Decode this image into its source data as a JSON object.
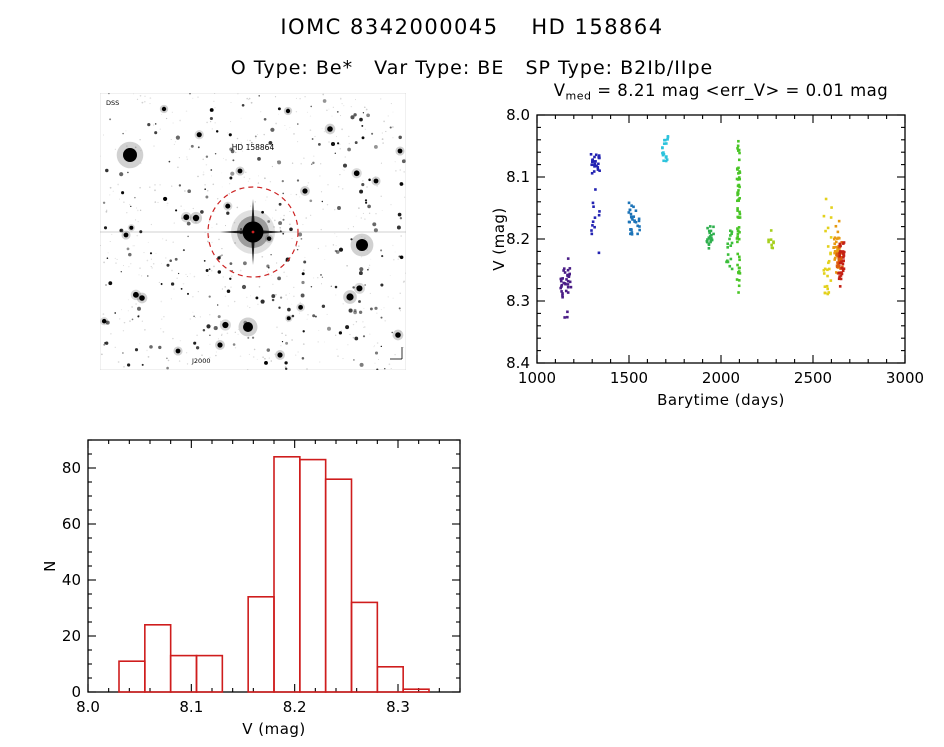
{
  "page": {
    "title": "IOMC 8342000045    HD 158864",
    "subtitle": "O Type: Be*   Var Type: BE   SP Type: B2Ib/IIpe"
  },
  "finder": {
    "target_label": "HD 158864",
    "corner_label": "DSS",
    "footer_label": "J2000",
    "circle_color": "#cc2222",
    "label_color": "#cc2222",
    "footer_color": "#2233bb"
  },
  "chart_data": [
    {
      "type": "scatter",
      "title": {
        "base": "V",
        "sub": "med",
        "rest": " = 8.21 mag <err_V> = 0.01 mag"
      },
      "xlabel": "Barytime (days)",
      "ylabel": "V (mag)",
      "xlim": [
        1000,
        3000
      ],
      "ylim": [
        8.0,
        8.4
      ],
      "y_inverted": true,
      "xticks": [
        1000,
        1500,
        2000,
        2500,
        3000
      ],
      "yticks": [
        8.0,
        8.1,
        8.2,
        8.3,
        8.4
      ],
      "x_minor_step": 100,
      "y_minor_step": 0.02,
      "x_tick_decimals": 0,
      "y_tick_decimals": 1,
      "clusters": [
        {
          "color": "#4a1d86",
          "n": 34,
          "x": [
            1128,
            1185
          ],
          "v": [
            8.22,
            8.31
          ],
          "dist": "gauss"
        },
        {
          "color": "#4a1d86",
          "n": 3,
          "x": [
            1135,
            1172
          ],
          "v": [
            8.312,
            8.335
          ],
          "dist": "uniform"
        },
        {
          "color": "#2323b2",
          "n": 24,
          "x": [
            1292,
            1342
          ],
          "v": [
            8.05,
            8.105
          ],
          "dist": "gauss"
        },
        {
          "color": "#2323b2",
          "n": 12,
          "x": [
            1296,
            1345
          ],
          "v": [
            8.12,
            8.24
          ],
          "dist": "uniform"
        },
        {
          "color": "#1d74b8",
          "n": 30,
          "x": [
            1498,
            1560
          ],
          "v": [
            8.12,
            8.22
          ],
          "dist": "gauss"
        },
        {
          "color": "#2cc3dc",
          "n": 18,
          "x": [
            1678,
            1712
          ],
          "v": [
            8.03,
            8.075
          ],
          "dist": "uniform"
        },
        {
          "color": "#2fb04e",
          "n": 22,
          "x": [
            1922,
            1962
          ],
          "v": [
            8.17,
            8.23
          ],
          "dist": "gauss"
        },
        {
          "color": "#3cbe3c",
          "n": 16,
          "x": [
            2030,
            2062
          ],
          "v": [
            8.17,
            8.25
          ],
          "dist": "uniform"
        },
        {
          "color": "#49c526",
          "n": 55,
          "x": [
            2086,
            2104
          ],
          "v": [
            8.06,
            8.295
          ],
          "dist": "uniform"
        },
        {
          "color": "#49c526",
          "n": 5,
          "x": [
            2088,
            2100
          ],
          "v": [
            8.035,
            8.06
          ],
          "dist": "uniform"
        },
        {
          "color": "#a6cf1e",
          "n": 9,
          "x": [
            2258,
            2288
          ],
          "v": [
            8.185,
            8.215
          ],
          "dist": "uniform"
        },
        {
          "color": "#e3d11c",
          "n": 26,
          "x": [
            2556,
            2606
          ],
          "v": [
            8.13,
            8.29
          ],
          "dist": "uniform"
        },
        {
          "color": "#e79a12",
          "n": 30,
          "x": [
            2612,
            2648
          ],
          "v": [
            8.165,
            8.265
          ],
          "dist": "gauss"
        },
        {
          "color": "#dd5c0e",
          "n": 28,
          "x": [
            2628,
            2660
          ],
          "v": [
            8.17,
            8.285
          ],
          "dist": "gauss"
        },
        {
          "color": "#c42114",
          "n": 34,
          "x": [
            2640,
            2672
          ],
          "v": [
            8.18,
            8.29
          ],
          "dist": "gauss"
        }
      ]
    },
    {
      "type": "histogram",
      "xlabel": "V (mag)",
      "ylabel": "N",
      "xlim": [
        8.0,
        8.36
      ],
      "ylim": [
        0,
        90
      ],
      "y_inverted": false,
      "xticks": [
        8.0,
        8.1,
        8.2,
        8.3
      ],
      "yticks": [
        0,
        20,
        40,
        60,
        80
      ],
      "x_minor_step": 0.02,
      "y_minor_step": 5,
      "x_tick_decimals": 1,
      "y_tick_decimals": 0,
      "bin_start": 8.03,
      "bin_width": 0.025,
      "counts": [
        11,
        24,
        13,
        13,
        0,
        34,
        84,
        83,
        76,
        32,
        9,
        1
      ],
      "color": "#cf1d1d"
    }
  ]
}
